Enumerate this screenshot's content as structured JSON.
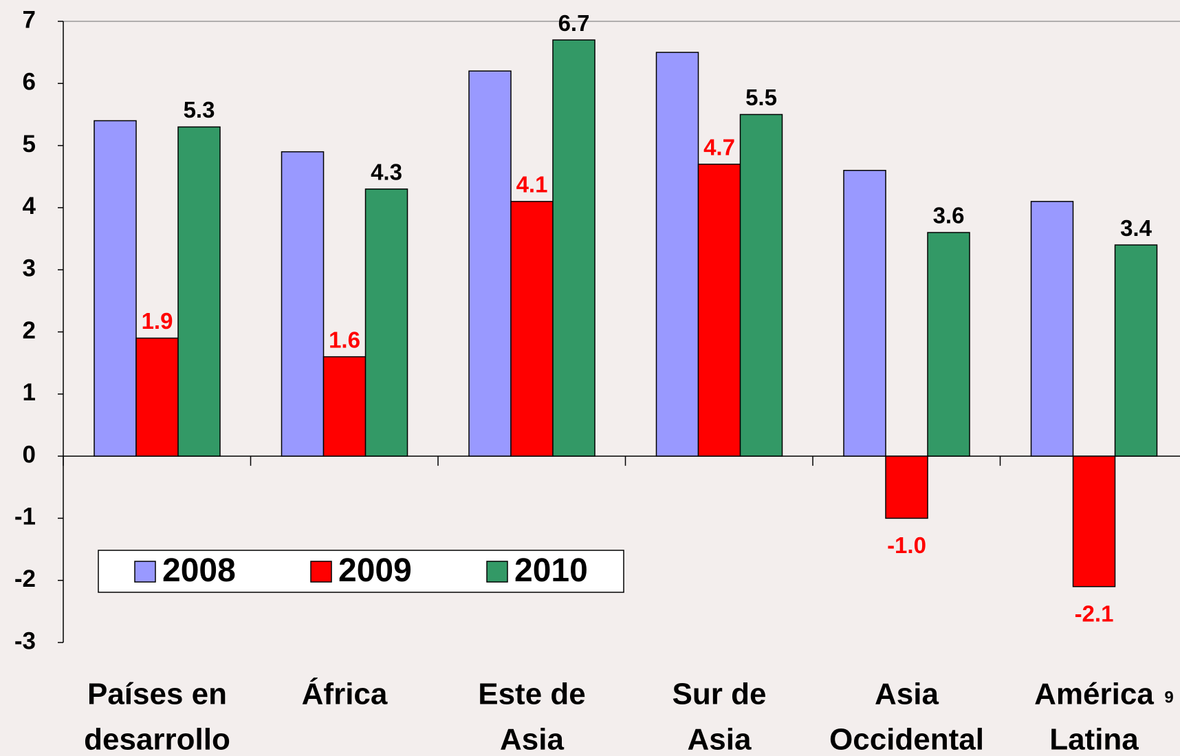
{
  "chart_data": {
    "type": "bar",
    "categories": [
      [
        "Países en",
        "desarrollo"
      ],
      [
        "África"
      ],
      [
        "Este de",
        "Asia"
      ],
      [
        "Sur de",
        "Asia"
      ],
      [
        "Asia",
        "Occidental"
      ],
      [
        "América",
        "Latina"
      ]
    ],
    "series": [
      {
        "name": "2008",
        "color": "#9999ff",
        "values": [
          5.4,
          4.9,
          6.2,
          6.5,
          4.6,
          4.1
        ]
      },
      {
        "name": "2009",
        "color": "#ff0000",
        "label_color": "#ff0000",
        "values": [
          1.9,
          1.6,
          4.1,
          4.7,
          -1.0,
          -2.1
        ],
        "value_labels": [
          "1.9",
          "1.6",
          "4.1",
          "4.7",
          "-1.0",
          "-2.1"
        ]
      },
      {
        "name": "2010",
        "color": "#339966",
        "label_color": "#000000",
        "values": [
          5.3,
          4.3,
          6.7,
          5.5,
          3.6,
          3.4
        ],
        "value_labels": [
          "5.3",
          "4.3",
          "6.7",
          "5.5",
          "3.6",
          "3.4"
        ]
      }
    ],
    "ylim": [
      -3,
      7
    ],
    "yticks": [
      -3,
      -2,
      -1,
      0,
      1,
      2,
      3,
      4,
      5,
      6,
      7
    ],
    "legend": "bottom-left",
    "page_number": "9"
  }
}
